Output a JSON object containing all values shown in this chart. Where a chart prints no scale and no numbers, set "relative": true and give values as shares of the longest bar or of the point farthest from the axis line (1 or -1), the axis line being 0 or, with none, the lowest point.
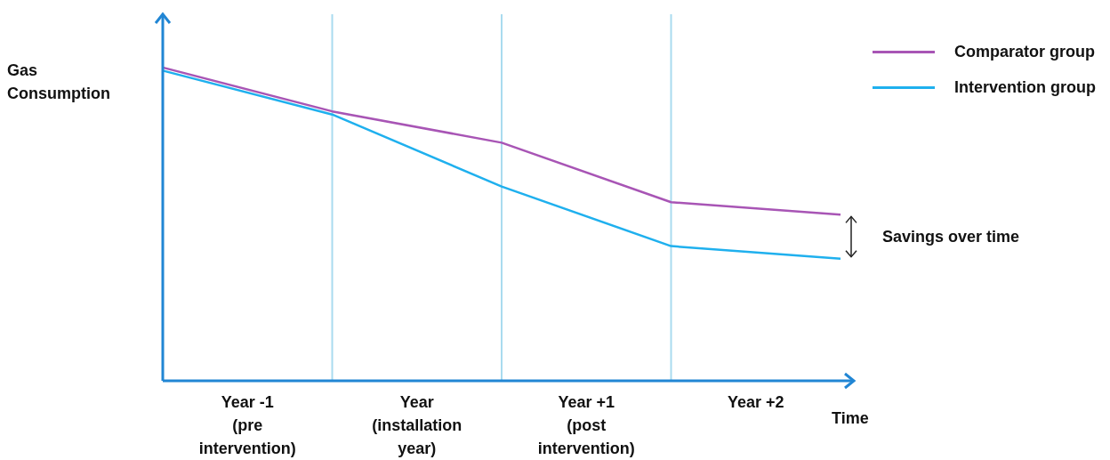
{
  "chart_data": {
    "type": "line",
    "relative": true,
    "ylabel": "Gas Consumption",
    "xlabel": "Time",
    "categories": [
      null,
      "Year -1 (pre intervention)",
      null,
      "Year (installation year)",
      null,
      "Year +1 (post intervention)",
      null,
      "Year +2",
      null
    ],
    "series": [
      {
        "name": "Comparator group",
        "color": "#a855b5",
        "values": [
          1,
          null,
          0.86,
          null,
          0.76,
          null,
          0.57,
          null,
          0.53
        ]
      },
      {
        "name": "Intervention group",
        "color": "#1fb0ee",
        "values": [
          0.99,
          null,
          0.85,
          null,
          0.62,
          null,
          0.43,
          null,
          0.39
        ]
      }
    ],
    "grid": "x",
    "annotations": [
      "Savings over time"
    ],
    "legend": "top right"
  }
}
